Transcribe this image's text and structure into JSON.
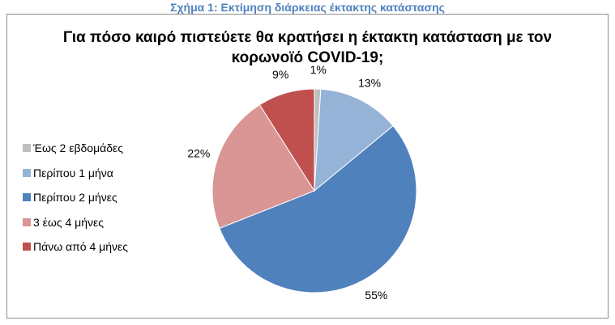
{
  "caption": "Σχήμα 1: Εκτίμηση διάρκειας έκτακτης κατάστασης",
  "chart_data": {
    "type": "pie",
    "title_line1": "Για πόσο καιρό πιστεύετε θα κρατήσει η έκτακτη κατάσταση με τον",
    "title_line2": "κορωνοϊό COVID-19;",
    "legend_position": "left",
    "slices": [
      {
        "label": "Έως 2 εβδομάδες",
        "value": 1,
        "value_label": "1%",
        "color": "#BFBFBF"
      },
      {
        "label": "Περίπου 1 μήνα",
        "value": 13,
        "value_label": "13%",
        "color": "#95B3D7"
      },
      {
        "label": "Περίπου 2 μήνες",
        "value": 55,
        "value_label": "55%",
        "color": "#4F81BD"
      },
      {
        "label": "3 έως 4 μήνες",
        "value": 22,
        "value_label": "22%",
        "color": "#D99694"
      },
      {
        "label": "Πάνω από 4 μήνες",
        "value": 9,
        "value_label": "9%",
        "color": "#C0504D"
      }
    ]
  }
}
